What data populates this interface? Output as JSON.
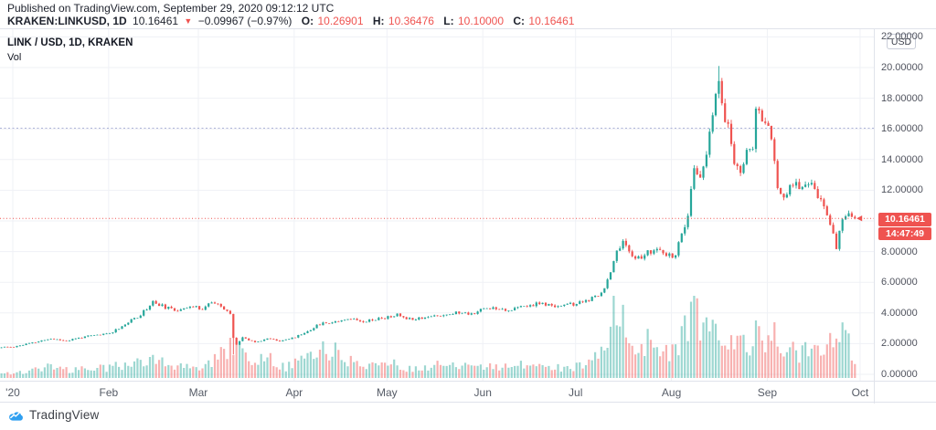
{
  "header": {
    "published_line": "Published on TradingView.com, September 29, 2020 09:12:12 UTC",
    "symbol": "KRAKEN:LINKUSD, 1D",
    "price": "10.16461",
    "arrow": "▼",
    "change": "−0.09967 (−0.97%)",
    "ohlc": {
      "o": {
        "label": "O:",
        "value": "10.26901"
      },
      "h": {
        "label": "H:",
        "value": "10.36476"
      },
      "l": {
        "label": "L:",
        "value": "10.10000"
      },
      "c": {
        "label": "C:",
        "value": "10.16461"
      }
    }
  },
  "legend": {
    "title": "LINK / USD, 1D, KRAKEN",
    "indicator": "Vol"
  },
  "price_axis": {
    "currency_button": "USD",
    "labels": [
      {
        "price": 22,
        "text": "22.00000"
      },
      {
        "price": 20,
        "text": "20.00000"
      },
      {
        "price": 18,
        "text": "18.00000"
      },
      {
        "price": 16,
        "text": "16.00000"
      },
      {
        "price": 14,
        "text": "14.00000"
      },
      {
        "price": 12,
        "text": "12.00000"
      },
      {
        "price": 8,
        "text": "8.00000"
      },
      {
        "price": 6,
        "text": "6.00000"
      },
      {
        "price": 4,
        "text": "4.00000"
      },
      {
        "price": 2,
        "text": "2.00000"
      },
      {
        "price": 0,
        "text": "0.00000"
      }
    ],
    "last_price_badge": "10.16461",
    "countdown_badge": "14:47:49"
  },
  "time_axis": {
    "ticks": [
      {
        "label": "'20",
        "day": 0
      },
      {
        "label": "Feb",
        "day": 31
      },
      {
        "label": "Mar",
        "day": 60
      },
      {
        "label": "Apr",
        "day": 91
      },
      {
        "label": "May",
        "day": 121
      },
      {
        "label": "Jun",
        "day": 152
      },
      {
        "label": "Jul",
        "day": 182
      },
      {
        "label": "Aug",
        "day": 213
      },
      {
        "label": "Sep",
        "day": 244
      },
      {
        "label": "Oct",
        "day": 274
      }
    ]
  },
  "footer": {
    "brand": "TradingView"
  },
  "chart_data": {
    "type": "candlestick+volume",
    "symbol": "KRAKEN:LINKUSD",
    "interval": "1D",
    "title": "LINK / USD, 1D, KRAKEN",
    "date_range": [
      "2019-12-28",
      "2020-09-29"
    ],
    "ylim": [
      0,
      22
    ],
    "y_grid_step": 2,
    "grid": true,
    "day_zero": "2020-01-01",
    "first_day": -4,
    "last_day": 272,
    "last_candle": {
      "open": 10.26901,
      "high": 10.36476,
      "low": 10.1,
      "close": 10.16461
    },
    "current_price_line": 10.16461,
    "level_line": 16.05,
    "price_keypoints": [
      [
        -5,
        1.72
      ],
      [
        -4,
        1.75
      ],
      [
        0,
        1.8
      ],
      [
        6,
        2.05
      ],
      [
        12,
        2.32
      ],
      [
        17,
        2.18
      ],
      [
        22,
        2.42
      ],
      [
        27,
        2.55
      ],
      [
        31,
        2.68
      ],
      [
        36,
        3.25
      ],
      [
        41,
        3.9
      ],
      [
        45,
        4.72
      ],
      [
        48,
        4.45
      ],
      [
        52,
        4.15
      ],
      [
        56,
        4.42
      ],
      [
        61,
        4.3
      ],
      [
        64,
        4.72
      ],
      [
        67,
        4.38
      ],
      [
        70,
        3.95
      ],
      [
        71,
        2.35
      ],
      [
        72,
        1.98
      ],
      [
        74,
        2.4
      ],
      [
        78,
        2.12
      ],
      [
        82,
        2.32
      ],
      [
        86,
        2.2
      ],
      [
        90,
        2.35
      ],
      [
        94,
        2.7
      ],
      [
        99,
        3.28
      ],
      [
        104,
        3.45
      ],
      [
        108,
        3.65
      ],
      [
        113,
        3.48
      ],
      [
        117,
        3.6
      ],
      [
        121,
        3.72
      ],
      [
        124,
        3.88
      ],
      [
        128,
        3.62
      ],
      [
        133,
        3.72
      ],
      [
        138,
        3.85
      ],
      [
        143,
        4.02
      ],
      [
        148,
        3.95
      ],
      [
        152,
        4.28
      ],
      [
        156,
        4.35
      ],
      [
        160,
        4.18
      ],
      [
        165,
        4.42
      ],
      [
        170,
        4.62
      ],
      [
        174,
        4.45
      ],
      [
        178,
        4.52
      ],
      [
        182,
        4.58
      ],
      [
        186,
        4.85
      ],
      [
        189,
        5.1
      ],
      [
        191,
        5.7
      ],
      [
        193,
        6.6
      ],
      [
        195,
        8.2
      ],
      [
        197,
        8.55
      ],
      [
        199,
        8.05
      ],
      [
        202,
        7.55
      ],
      [
        205,
        7.9
      ],
      [
        208,
        8.15
      ],
      [
        211,
        7.65
      ],
      [
        214,
        7.85
      ],
      [
        216,
        9.0
      ],
      [
        218,
        10.3
      ],
      [
        220,
        13.3
      ],
      [
        222,
        13.0
      ],
      [
        224,
        14.1
      ],
      [
        226,
        16.9
      ],
      [
        228,
        19.2
      ],
      [
        229,
        17.4
      ],
      [
        231,
        16.1
      ],
      [
        233,
        13.9
      ],
      [
        235,
        13.3
      ],
      [
        237,
        14.4
      ],
      [
        239,
        15.0
      ],
      [
        240,
        17.2
      ],
      [
        242,
        16.5
      ],
      [
        244,
        16.2
      ],
      [
        245,
        15.0
      ],
      [
        247,
        12.4
      ],
      [
        249,
        11.6
      ],
      [
        251,
        12.1
      ],
      [
        253,
        12.7
      ],
      [
        255,
        12.0
      ],
      [
        257,
        12.6
      ],
      [
        259,
        11.9
      ],
      [
        261,
        11.2
      ],
      [
        263,
        10.4
      ],
      [
        265,
        9.4
      ],
      [
        266,
        8.2
      ],
      [
        267,
        9.3
      ],
      [
        268,
        10.1
      ],
      [
        270,
        10.5
      ],
      [
        271,
        10.269
      ],
      [
        272,
        10.16461
      ]
    ],
    "volume_keypoints": [
      [
        -5,
        0.05
      ],
      [
        0,
        0.06
      ],
      [
        6,
        0.09
      ],
      [
        12,
        0.16
      ],
      [
        18,
        0.09
      ],
      [
        25,
        0.11
      ],
      [
        31,
        0.13
      ],
      [
        38,
        0.17
      ],
      [
        45,
        0.24
      ],
      [
        50,
        0.16
      ],
      [
        56,
        0.13
      ],
      [
        63,
        0.16
      ],
      [
        70,
        0.36
      ],
      [
        72,
        0.4
      ],
      [
        76,
        0.18
      ],
      [
        82,
        0.24
      ],
      [
        88,
        0.13
      ],
      [
        93,
        0.24
      ],
      [
        99,
        0.34
      ],
      [
        104,
        0.32
      ],
      [
        110,
        0.17
      ],
      [
        116,
        0.17
      ],
      [
        121,
        0.21
      ],
      [
        126,
        0.13
      ],
      [
        132,
        0.11
      ],
      [
        138,
        0.16
      ],
      [
        144,
        0.14
      ],
      [
        150,
        0.13
      ],
      [
        155,
        0.15
      ],
      [
        160,
        0.12
      ],
      [
        166,
        0.17
      ],
      [
        172,
        0.13
      ],
      [
        178,
        0.12
      ],
      [
        183,
        0.15
      ],
      [
        188,
        0.24
      ],
      [
        192,
        0.55
      ],
      [
        194,
        1.0
      ],
      [
        196,
        0.8
      ],
      [
        199,
        0.55
      ],
      [
        202,
        0.36
      ],
      [
        206,
        0.46
      ],
      [
        210,
        0.3
      ],
      [
        214,
        0.36
      ],
      [
        217,
        0.62
      ],
      [
        220,
        0.88
      ],
      [
        223,
        0.55
      ],
      [
        226,
        0.62
      ],
      [
        228,
        0.56
      ],
      [
        231,
        0.42
      ],
      [
        234,
        0.5
      ],
      [
        237,
        0.36
      ],
      [
        240,
        0.52
      ],
      [
        243,
        0.36
      ],
      [
        246,
        0.54
      ],
      [
        249,
        0.42
      ],
      [
        252,
        0.33
      ],
      [
        255,
        0.29
      ],
      [
        258,
        0.36
      ],
      [
        261,
        0.31
      ],
      [
        264,
        0.46
      ],
      [
        266,
        0.75
      ],
      [
        268,
        0.56
      ],
      [
        270,
        0.4
      ],
      [
        272,
        0.18
      ]
    ],
    "special_wicks": {
      "71": {
        "low": 1.3
      },
      "228": {
        "high": 20.1
      }
    },
    "colors": {
      "up": "#26a69a",
      "down": "#ef5350",
      "volume_up": "rgba(38,166,154,0.45)",
      "volume_down": "rgba(239,83,80,0.45)",
      "grid": "#eff1f6",
      "price_line": "#ef5350",
      "level_line": "#a9aed6",
      "badge": "#ef5350"
    }
  }
}
